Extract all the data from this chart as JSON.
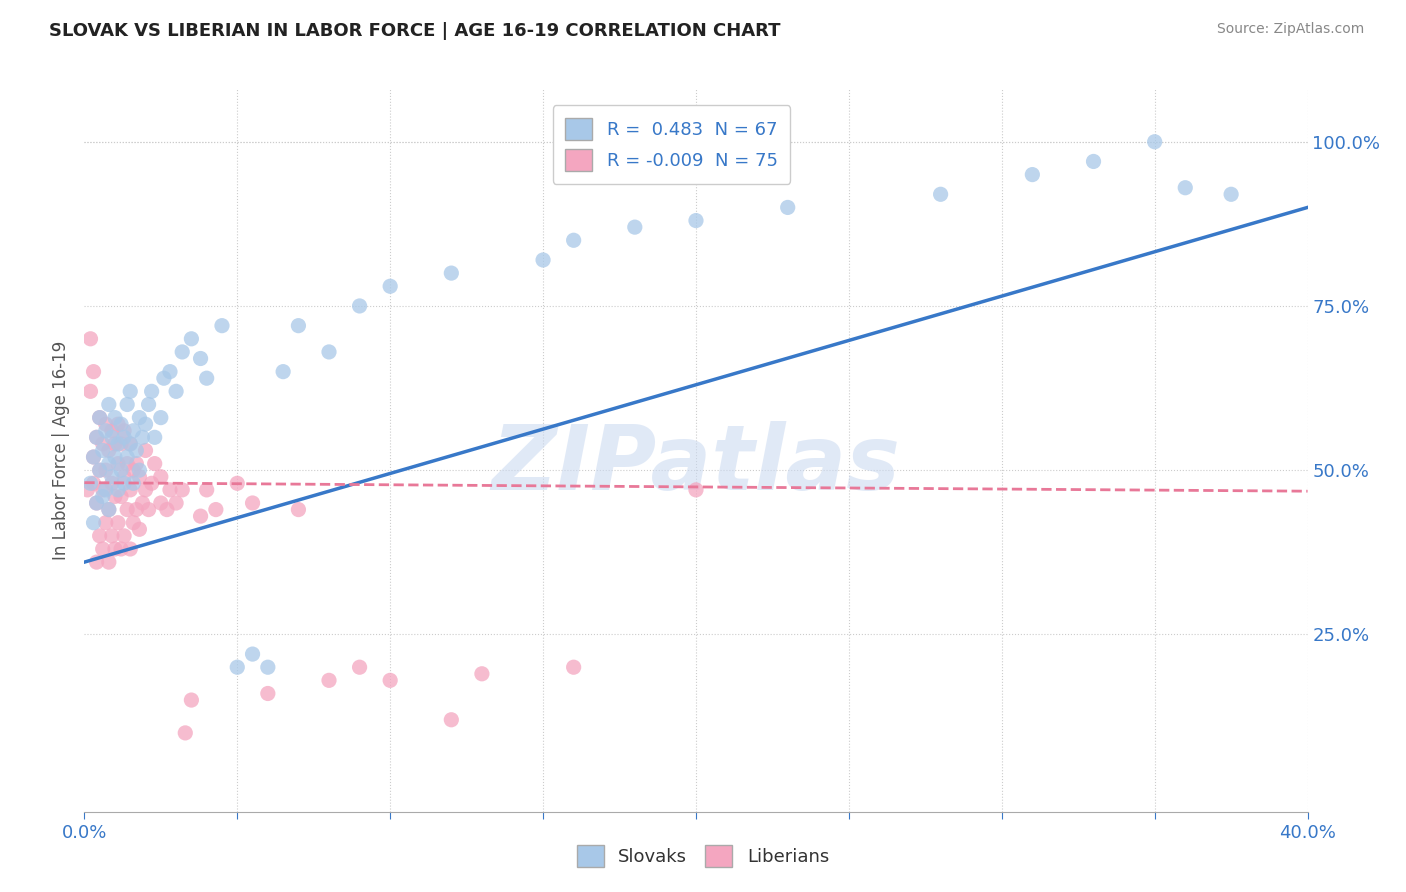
{
  "title": "SLOVAK VS LIBERIAN IN LABOR FORCE | AGE 16-19 CORRELATION CHART",
  "source": "Source: ZipAtlas.com",
  "ylabel": "In Labor Force | Age 16-19",
  "xlim": [
    0.0,
    0.4
  ],
  "ylim": [
    -0.02,
    1.08
  ],
  "xticks": [
    0.0,
    0.05,
    0.1,
    0.15,
    0.2,
    0.25,
    0.3,
    0.35,
    0.4
  ],
  "xtick_labels": [
    "0.0%",
    "",
    "",
    "",
    "",
    "",
    "",
    "",
    "40.0%"
  ],
  "ytick_labels_right": [
    "25.0%",
    "50.0%",
    "75.0%",
    "100.0%"
  ],
  "ytick_positions_right": [
    0.25,
    0.5,
    0.75,
    1.0
  ],
  "slovak_R": 0.483,
  "slovak_N": 67,
  "liberian_R": -0.009,
  "liberian_N": 75,
  "blue_color": "#a8c8e8",
  "pink_color": "#f4a6c0",
  "blue_line_color": "#3878c8",
  "pink_line_color": "#e87898",
  "watermark": "ZIPatlas",
  "background_color": "#ffffff",
  "slovak_x": [
    0.002,
    0.003,
    0.003,
    0.004,
    0.004,
    0.005,
    0.005,
    0.006,
    0.006,
    0.007,
    0.007,
    0.008,
    0.008,
    0.008,
    0.009,
    0.009,
    0.01,
    0.01,
    0.011,
    0.011,
    0.012,
    0.012,
    0.013,
    0.013,
    0.014,
    0.014,
    0.015,
    0.015,
    0.016,
    0.016,
    0.017,
    0.018,
    0.018,
    0.019,
    0.02,
    0.021,
    0.022,
    0.023,
    0.025,
    0.026,
    0.028,
    0.03,
    0.032,
    0.035,
    0.038,
    0.04,
    0.045,
    0.05,
    0.055,
    0.06,
    0.065,
    0.07,
    0.08,
    0.09,
    0.1,
    0.12,
    0.15,
    0.16,
    0.18,
    0.2,
    0.23,
    0.28,
    0.31,
    0.33,
    0.35,
    0.36,
    0.375
  ],
  "slovak_y": [
    0.48,
    0.52,
    0.42,
    0.55,
    0.45,
    0.5,
    0.58,
    0.46,
    0.53,
    0.47,
    0.56,
    0.44,
    0.51,
    0.6,
    0.49,
    0.55,
    0.52,
    0.58,
    0.47,
    0.54,
    0.5,
    0.57,
    0.48,
    0.55,
    0.52,
    0.6,
    0.54,
    0.62,
    0.56,
    0.48,
    0.53,
    0.5,
    0.58,
    0.55,
    0.57,
    0.6,
    0.62,
    0.55,
    0.58,
    0.64,
    0.65,
    0.62,
    0.68,
    0.7,
    0.67,
    0.64,
    0.72,
    0.2,
    0.22,
    0.2,
    0.65,
    0.72,
    0.68,
    0.75,
    0.78,
    0.8,
    0.82,
    0.85,
    0.87,
    0.88,
    0.9,
    0.92,
    0.95,
    0.97,
    1.0,
    0.93,
    0.92
  ],
  "liberian_x": [
    0.001,
    0.002,
    0.002,
    0.003,
    0.003,
    0.003,
    0.004,
    0.004,
    0.004,
    0.005,
    0.005,
    0.005,
    0.006,
    0.006,
    0.006,
    0.007,
    0.007,
    0.007,
    0.008,
    0.008,
    0.008,
    0.009,
    0.009,
    0.009,
    0.01,
    0.01,
    0.01,
    0.011,
    0.011,
    0.011,
    0.012,
    0.012,
    0.012,
    0.013,
    0.013,
    0.013,
    0.014,
    0.014,
    0.015,
    0.015,
    0.015,
    0.016,
    0.016,
    0.017,
    0.017,
    0.018,
    0.018,
    0.019,
    0.02,
    0.02,
    0.021,
    0.022,
    0.023,
    0.025,
    0.025,
    0.027,
    0.028,
    0.03,
    0.032,
    0.033,
    0.035,
    0.038,
    0.04,
    0.043,
    0.05,
    0.055,
    0.06,
    0.07,
    0.08,
    0.09,
    0.1,
    0.12,
    0.13,
    0.16,
    0.2
  ],
  "liberian_y": [
    0.47,
    0.62,
    0.7,
    0.48,
    0.52,
    0.65,
    0.36,
    0.45,
    0.55,
    0.4,
    0.5,
    0.58,
    0.38,
    0.47,
    0.54,
    0.42,
    0.5,
    0.57,
    0.36,
    0.44,
    0.53,
    0.4,
    0.48,
    0.56,
    0.38,
    0.46,
    0.54,
    0.42,
    0.51,
    0.57,
    0.38,
    0.46,
    0.54,
    0.4,
    0.49,
    0.56,
    0.44,
    0.51,
    0.38,
    0.47,
    0.54,
    0.42,
    0.5,
    0.44,
    0.51,
    0.41,
    0.49,
    0.45,
    0.47,
    0.53,
    0.44,
    0.48,
    0.51,
    0.45,
    0.49,
    0.44,
    0.47,
    0.45,
    0.47,
    0.1,
    0.15,
    0.43,
    0.47,
    0.44,
    0.48,
    0.45,
    0.16,
    0.44,
    0.18,
    0.2,
    0.18,
    0.12,
    0.19,
    0.2,
    0.47
  ]
}
